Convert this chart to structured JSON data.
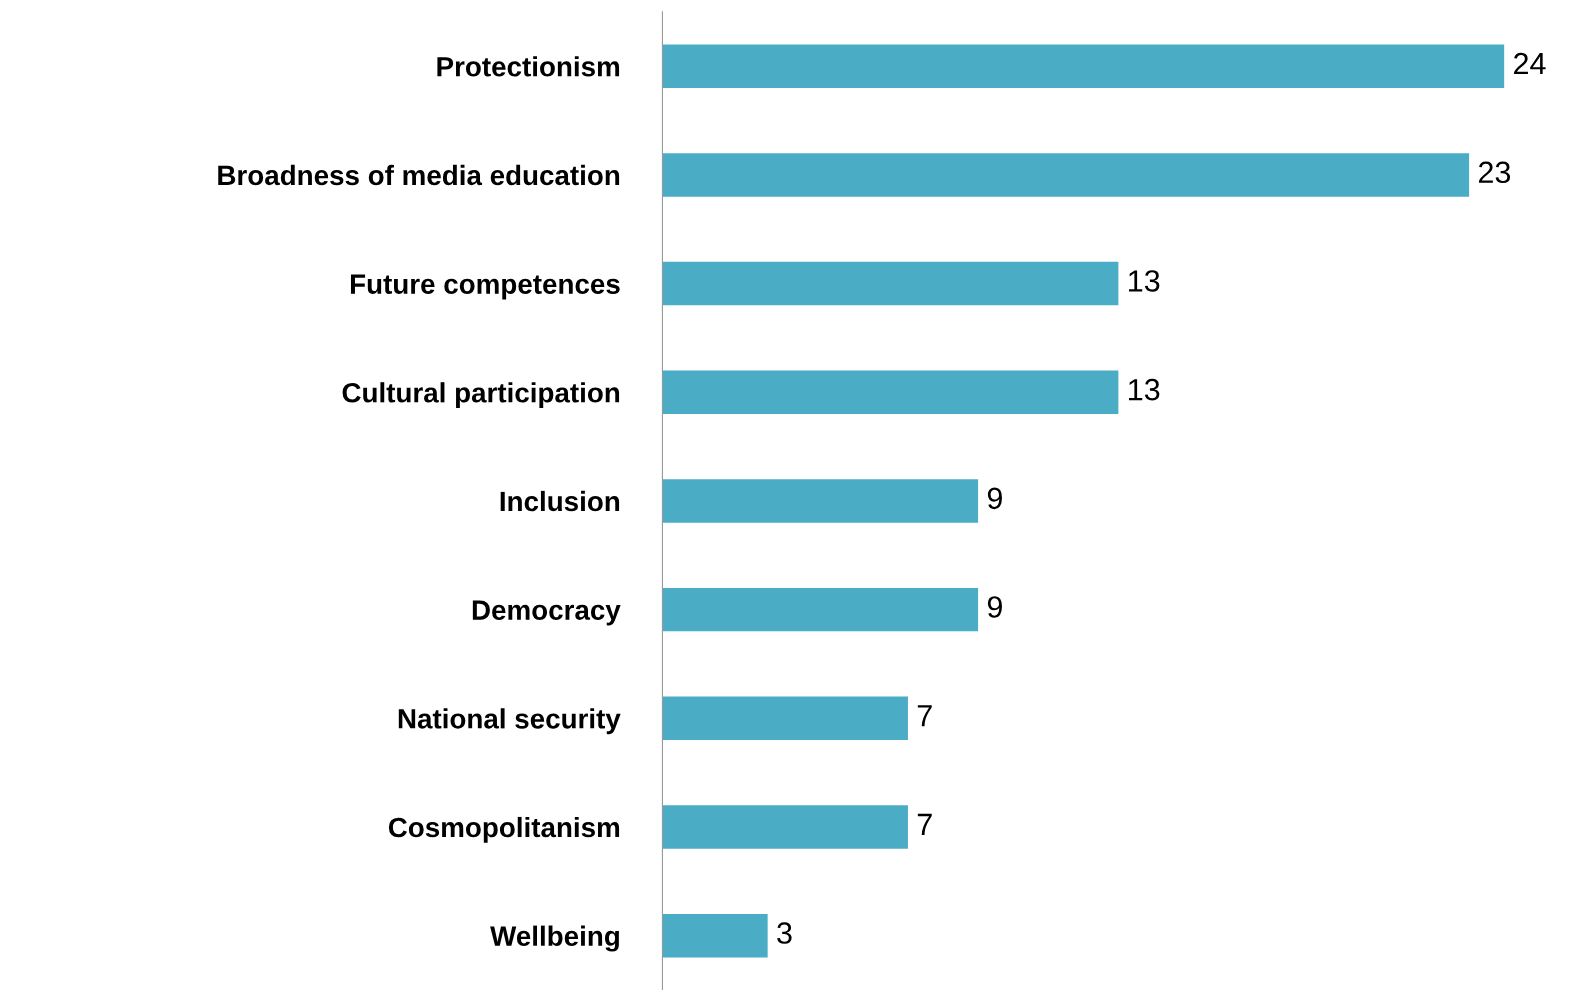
{
  "chart_data": {
    "type": "bar",
    "orientation": "horizontal",
    "categories": [
      "Protectionism",
      "Broadness of media education",
      "Future competences",
      "Cultural participation",
      "Inclusion",
      "Democracy",
      "National security",
      "Cosmopolitanism",
      "Wellbeing"
    ],
    "values": [
      24,
      23,
      13,
      13,
      9,
      9,
      7,
      7,
      3
    ],
    "color": "#4bacc6",
    "data_labels": true,
    "grid": false,
    "legend": false
  }
}
